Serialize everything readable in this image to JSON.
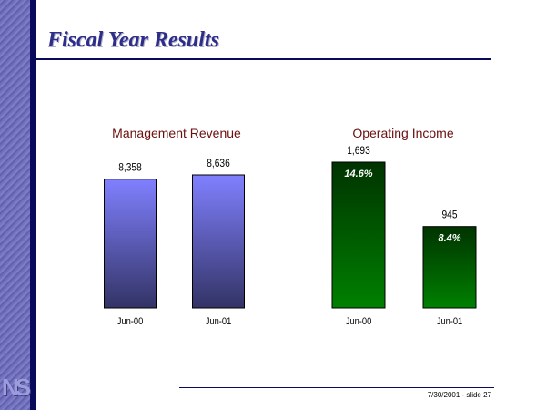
{
  "slide": {
    "title": "Fiscal Year Results",
    "footer": "7/30/2001 - slide 27",
    "logo_text": "NS"
  },
  "colors": {
    "accent": "#0a0a5a",
    "title": "#2e2e8a",
    "chart_title": "#6b0f0f"
  },
  "chart_data": [
    {
      "type": "bar",
      "title": "Management Revenue",
      "categories": [
        "Jun-00",
        "Jun-01"
      ],
      "values": [
        8358,
        8636
      ],
      "value_labels": [
        "8,358",
        "8,636"
      ],
      "ylim": [
        0,
        10000
      ],
      "gradient": [
        "#8080ff",
        "#333366"
      ],
      "grid": false
    },
    {
      "type": "bar",
      "title": "Operating Income",
      "categories": [
        "Jun-00",
        "Jun-01"
      ],
      "values": [
        1693,
        945
      ],
      "value_labels": [
        "1,693",
        "945"
      ],
      "inner_labels": [
        "14.6%",
        "8.4%"
      ],
      "ylim": [
        0,
        2000
      ],
      "gradient": [
        "#003300",
        "#008000"
      ],
      "grid": false
    }
  ]
}
